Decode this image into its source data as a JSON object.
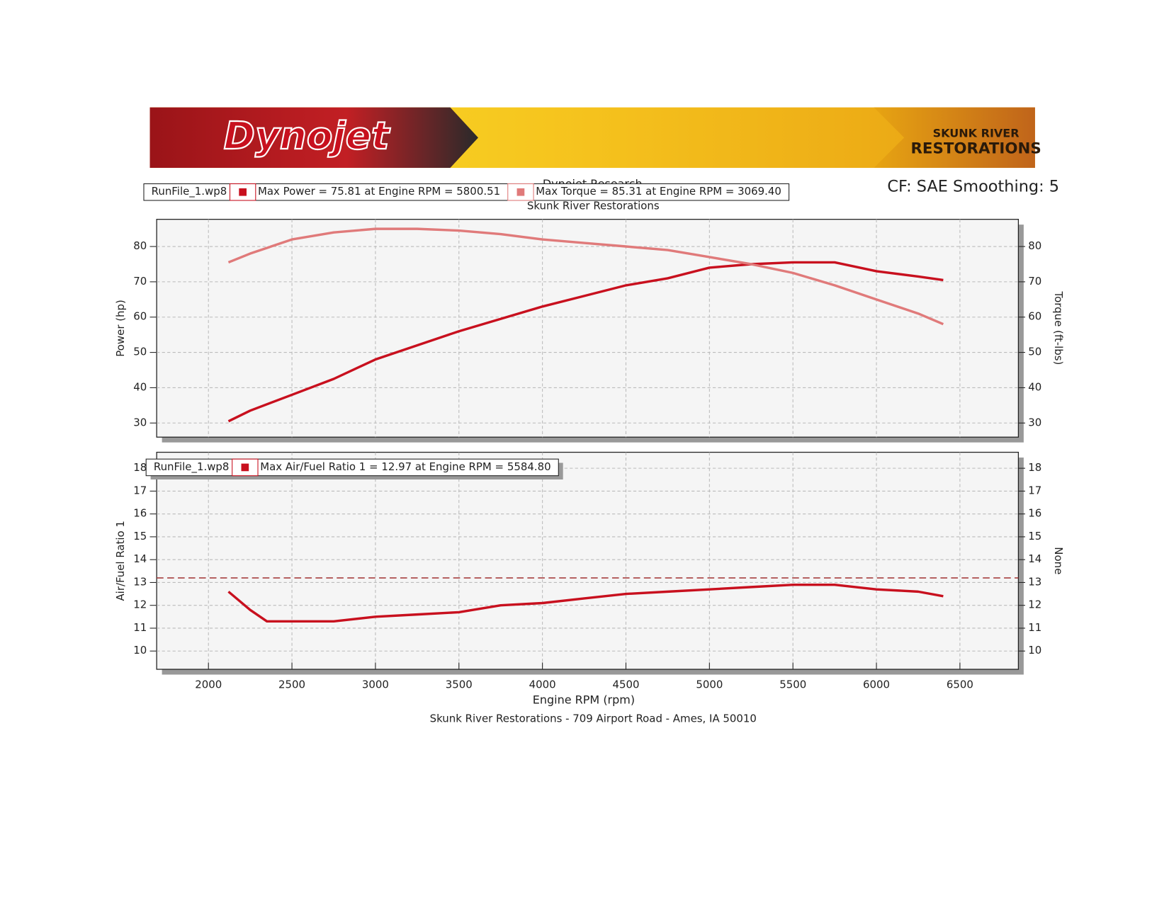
{
  "header": {
    "brand": "Dynojet",
    "shop_name": "SKUNK RIVER",
    "shop_name_2": "RESTORATIONS",
    "settings": "CF: SAE Smoothing: 5"
  },
  "chart_data": [
    {
      "type": "line",
      "title": "Dynojet Research",
      "subtitle": "Skunk River Restorations",
      "legend_label": "RunFile_1.wp8",
      "x": [
        2120,
        2250,
        2500,
        2750,
        3000,
        3250,
        3500,
        3750,
        4000,
        4250,
        4500,
        4750,
        5000,
        5250,
        5500,
        5750,
        6000,
        6250,
        6400
      ],
      "series": [
        {
          "name": "Max Power = 75.81 at Engine RPM = 5800.51",
          "color": "#c8101e",
          "values": [
            30.5,
            33.5,
            38,
            42.5,
            48,
            52,
            56,
            59.5,
            63,
            66,
            69,
            71,
            74,
            75,
            75.5,
            75.5,
            73,
            71.5,
            70.5
          ]
        },
        {
          "name": "Max Torque = 85.31 at Engine RPM = 3069.40",
          "color": "#e07a7a",
          "axis": "y2",
          "values": [
            75.5,
            78,
            82,
            84,
            85,
            85,
            84.5,
            83.5,
            82,
            81,
            80,
            79,
            77,
            75,
            72.5,
            69,
            65,
            61,
            58
          ]
        }
      ],
      "xlim": [
        1690,
        6850
      ],
      "ylim": [
        26,
        87.7
      ],
      "yticks": [
        30,
        40,
        50,
        60,
        70,
        80
      ],
      "y2lim": [
        26,
        87.7
      ],
      "y2ticks": [
        30,
        40,
        50,
        60,
        70,
        80
      ],
      "ylabel": "Power (hp)",
      "y2label": "Torque (ft-lbs)",
      "grid": true
    },
    {
      "type": "line",
      "legend_label": "RunFile_1.wp8",
      "x": [
        2120,
        2250,
        2350,
        2500,
        2750,
        3000,
        3250,
        3500,
        3750,
        4000,
        4250,
        4500,
        4750,
        5000,
        5250,
        5500,
        5750,
        6000,
        6250,
        6400
      ],
      "series": [
        {
          "name": "Max Air/Fuel Ratio 1 = 12.97 at Engine RPM = 5584.80",
          "color": "#c8101e",
          "values": [
            12.6,
            11.8,
            11.3,
            11.3,
            11.3,
            11.5,
            11.6,
            11.7,
            12.0,
            12.1,
            12.3,
            12.5,
            12.6,
            12.7,
            12.8,
            12.9,
            12.9,
            12.7,
            12.6,
            12.4
          ]
        }
      ],
      "hline": 13.2,
      "hline_color": "#a03030",
      "xlim": [
        1690,
        6850
      ],
      "xticks": [
        2000,
        2500,
        3000,
        3500,
        4000,
        4500,
        5000,
        5500,
        6000,
        6500
      ],
      "ylim": [
        9.2,
        18.7
      ],
      "yticks": [
        10,
        11,
        12,
        13,
        14,
        15,
        16,
        17,
        18
      ],
      "y2lim": [
        9.2,
        18.7
      ],
      "y2ticks": [
        10,
        11,
        12,
        13,
        14,
        15,
        16,
        17,
        18
      ],
      "xlabel": "Engine RPM (rpm)",
      "ylabel": "Air/Fuel Ratio 1",
      "y2label": "None",
      "grid": true
    }
  ],
  "footer": "Skunk River Restorations - 709 Airport Road - Ames, IA 50010"
}
